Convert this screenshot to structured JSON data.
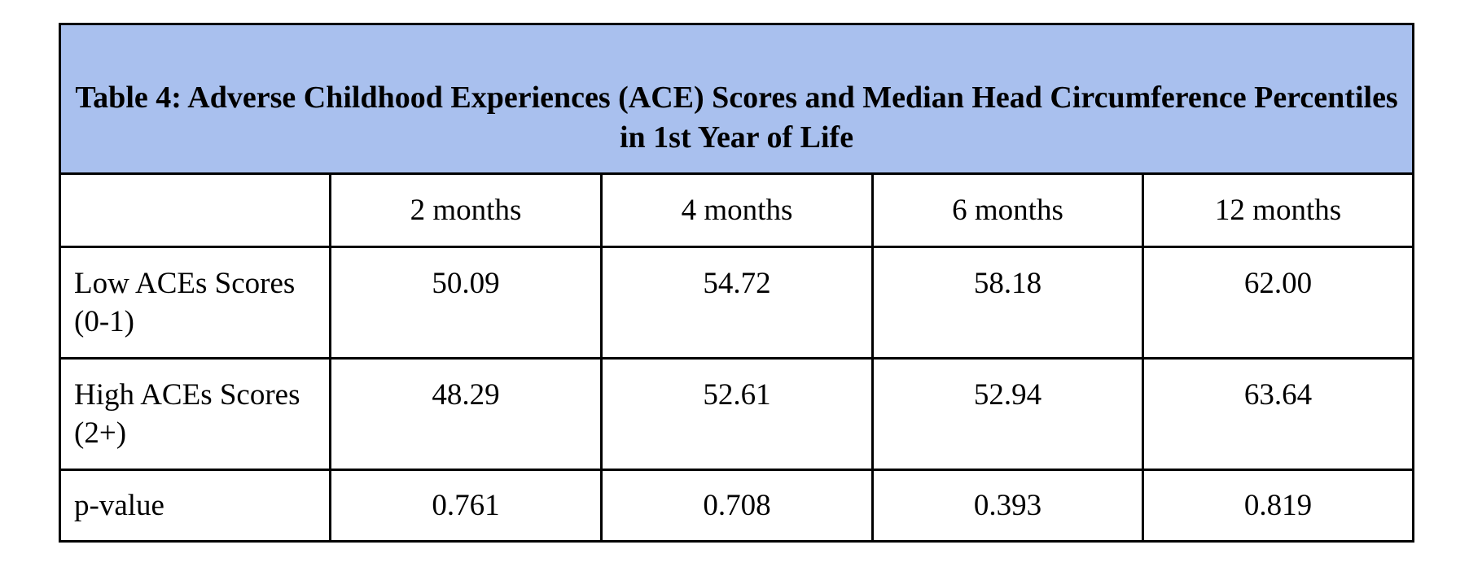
{
  "table": {
    "title": "Table 4: Adverse Childhood Experiences (ACE) Scores and Median Head Circumference Percentiles in 1st Year of Life",
    "header_color": "#a9c0ee",
    "columns": [
      "",
      "2 months",
      "4 months",
      "6 months",
      "12 months"
    ],
    "rows": [
      {
        "label": "Low ACEs Scores (0-1)",
        "values": [
          "50.09",
          "54.72",
          "58.18",
          "62.00"
        ]
      },
      {
        "label": "High ACEs Scores (2+)",
        "values": [
          "48.29",
          "52.61",
          "52.94",
          "63.64"
        ]
      },
      {
        "label": "p-value",
        "values": [
          "0.761",
          "0.708",
          "0.393",
          "0.819"
        ]
      }
    ]
  }
}
